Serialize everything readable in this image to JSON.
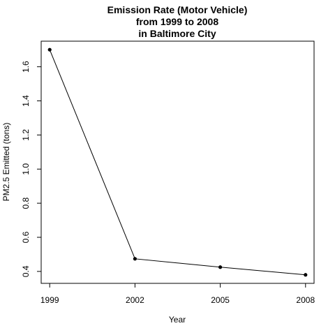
{
  "chart_data": {
    "type": "line",
    "title": [
      "Emission Rate (Motor Vehicle)",
      "from 1999 to 2008",
      "in Baltimore City"
    ],
    "xlabel": "Year",
    "ylabel": "PM2.5 Emitted (tons)",
    "x": [
      1999,
      2002,
      2005,
      2008
    ],
    "xticks": [
      "1999",
      "2002",
      "2005",
      "2008"
    ],
    "yticks": [
      "0.4",
      "0.6",
      "0.8",
      "1.0",
      "1.2",
      "1.4",
      "1.6"
    ],
    "xlim": [
      1998.7,
      2008.3
    ],
    "ylim": [
      0.33,
      1.75
    ],
    "series": [
      {
        "values": [
          1.7,
          0.474,
          0.425,
          0.38
        ],
        "color": "#000000"
      }
    ],
    "grid": false,
    "legend": "none"
  }
}
